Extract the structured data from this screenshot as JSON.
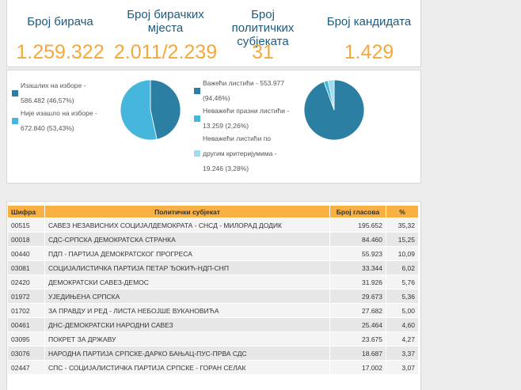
{
  "stats": [
    {
      "label": "Број бирача",
      "value": "1.259.322"
    },
    {
      "label": "Број бирачких мјеста",
      "value": "2.011/2.239"
    },
    {
      "label": "Број политичких субјеката",
      "value": "31"
    },
    {
      "label": "Број кандидата",
      "value": "1.429"
    }
  ],
  "turnout": {
    "legend": [
      {
        "lines": [
          "Изашлих на изборе -",
          "586.482 (46,57%)"
        ],
        "color": "#2a7fa3"
      },
      {
        "lines": [
          "Није изашло на изборе -",
          "672.840 (53,43%)"
        ],
        "color": "#46b6dd"
      }
    ],
    "slices": [
      46.57,
      53.43
    ],
    "colors": [
      "#2a7fa3",
      "#46b6dd"
    ]
  },
  "ballots": {
    "legend": [
      {
        "lines": [
          "Важећи листићи - 553.977",
          "(94,46%)"
        ],
        "color": "#2a7fa3"
      },
      {
        "lines": [
          "Неважећи празни листићи -",
          "13.259 (2,26%)"
        ],
        "color": "#46b6dd"
      },
      {
        "lines": [
          "Неважећи листићи по",
          "другим критеријумима -",
          "19.246 (3,28%)"
        ],
        "color": "#9fdcf0"
      }
    ],
    "slices": [
      94.46,
      2.26,
      3.28
    ],
    "colors": [
      "#2a7fa3",
      "#46b6dd",
      "#9fdcf0"
    ]
  },
  "table": {
    "headers": [
      "Шифра",
      "Политички субјекат",
      "Број гласова",
      "%"
    ],
    "rows": [
      [
        "00515",
        "САВЕЗ НЕЗАВИСНИХ СОЦИЈАЛДЕМОКРАТА - СНСД - МИЛОРАД ДОДИК",
        "195.652",
        "35,32"
      ],
      [
        "00018",
        "СДС-СРПСКА ДЕМОКРАТСКА СТРАНКА",
        "84.460",
        "15,25"
      ],
      [
        "00440",
        "ПДП - ПАРТИЈА ДЕМОКРАТСКОГ ПРОГРЕСА",
        "55.923",
        "10,09"
      ],
      [
        "03081",
        "СОЦИЈАЛИСТИЧКА ПАРТИЈА ПЕТАР ЂОКИЋ-НДП-СНП",
        "33.344",
        "6,02"
      ],
      [
        "02420",
        "ДЕМОКРАТСКИ САВЕЗ-ДЕМОС",
        "31.926",
        "5,76"
      ],
      [
        "01972",
        "УЈЕДИЊЕНА СРПСКА",
        "29.673",
        "5,36"
      ],
      [
        "01702",
        "ЗА ПРАВДУ И РЕД - ЛИСТА НЕБОЈШЕ ВУКАНОВИЋА",
        "27.682",
        "5,00"
      ],
      [
        "00461",
        "ДНС-ДЕМОКРАТСКИ НАРОДНИ САВЕЗ",
        "25.464",
        "4,60"
      ],
      [
        "03095",
        "ПОКРЕТ ЗА ДРЖАВУ",
        "23.675",
        "4,27"
      ],
      [
        "03076",
        "НАРОДНА ПАРТИЈА СРПСКЕ-ДАРКО БАЊАЦ-ПУС-ПРВА СДС",
        "18.687",
        "3,37"
      ],
      [
        "02447",
        "СПС - СОЦИЈАЛИСТИЧКА ПАРТИЈА СРПСКЕ - ГОРАН СЕЛАК",
        "17.002",
        "3,07"
      ]
    ]
  }
}
